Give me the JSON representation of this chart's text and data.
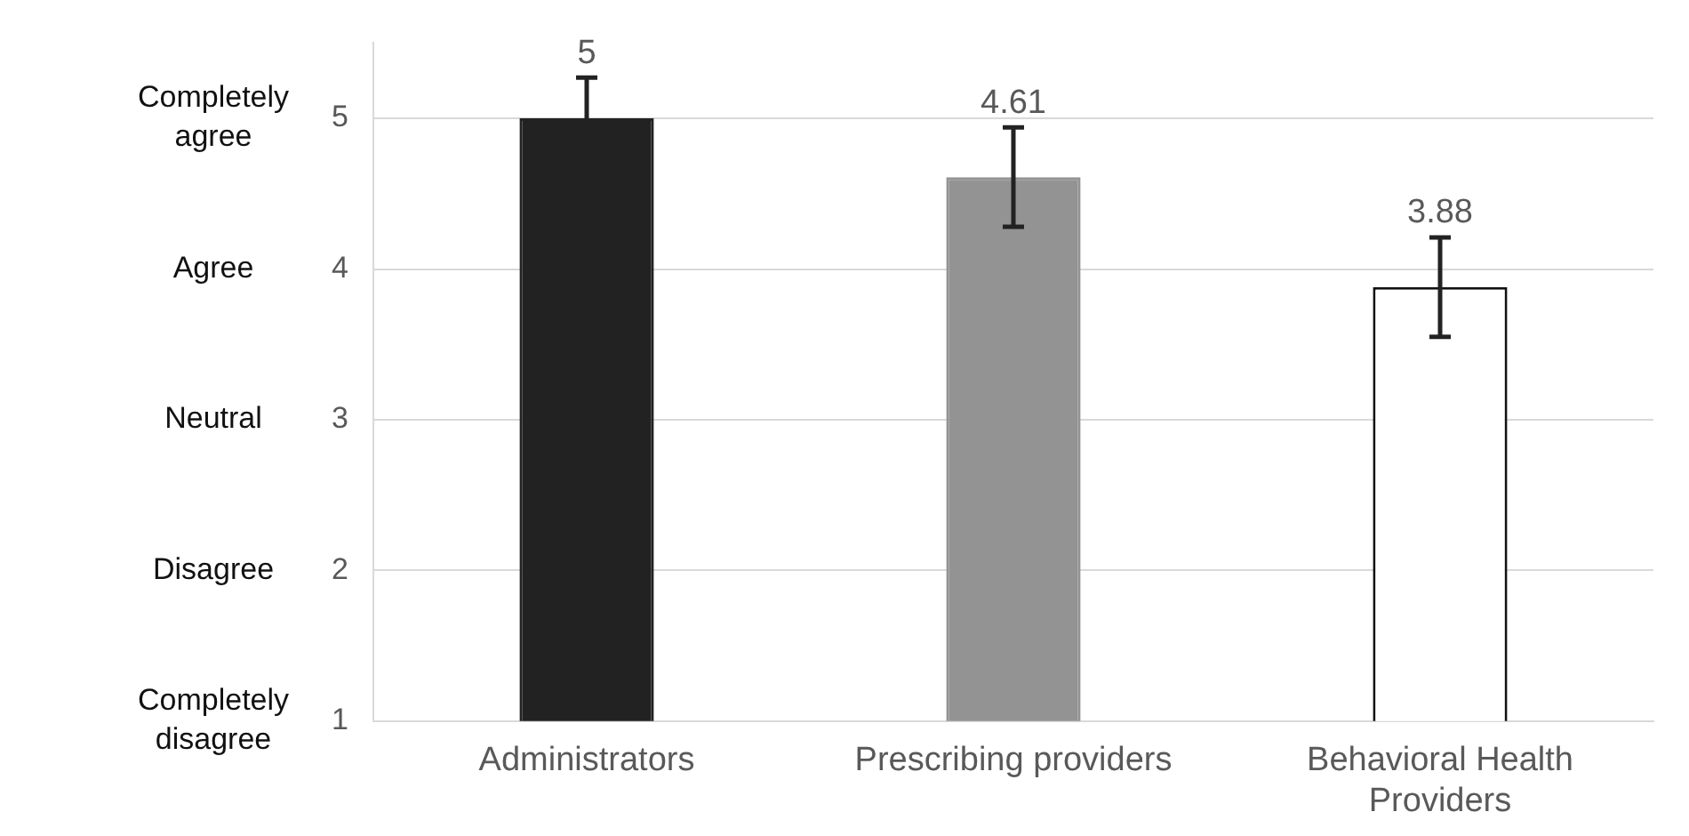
{
  "chart_data": {
    "type": "bar",
    "categories": [
      "Administrators",
      "Prescribing providers",
      "Behavioral Health Providers"
    ],
    "series": [
      {
        "values": [
          5,
          4.61,
          3.88
        ],
        "colors": [
          "#222222",
          "#939393",
          "#ffffff"
        ],
        "errors": [
          0.27,
          0.33,
          0.33
        ]
      }
    ],
    "ylim": [
      1,
      5.5
    ],
    "yticks": [
      1,
      2,
      3,
      4,
      5
    ],
    "annotations": [
      "Completely agree",
      "Agree",
      "Neutral",
      "Disagree",
      "Completely disagree"
    ],
    "grid": "y",
    "legend": false,
    "data_labels": true
  }
}
